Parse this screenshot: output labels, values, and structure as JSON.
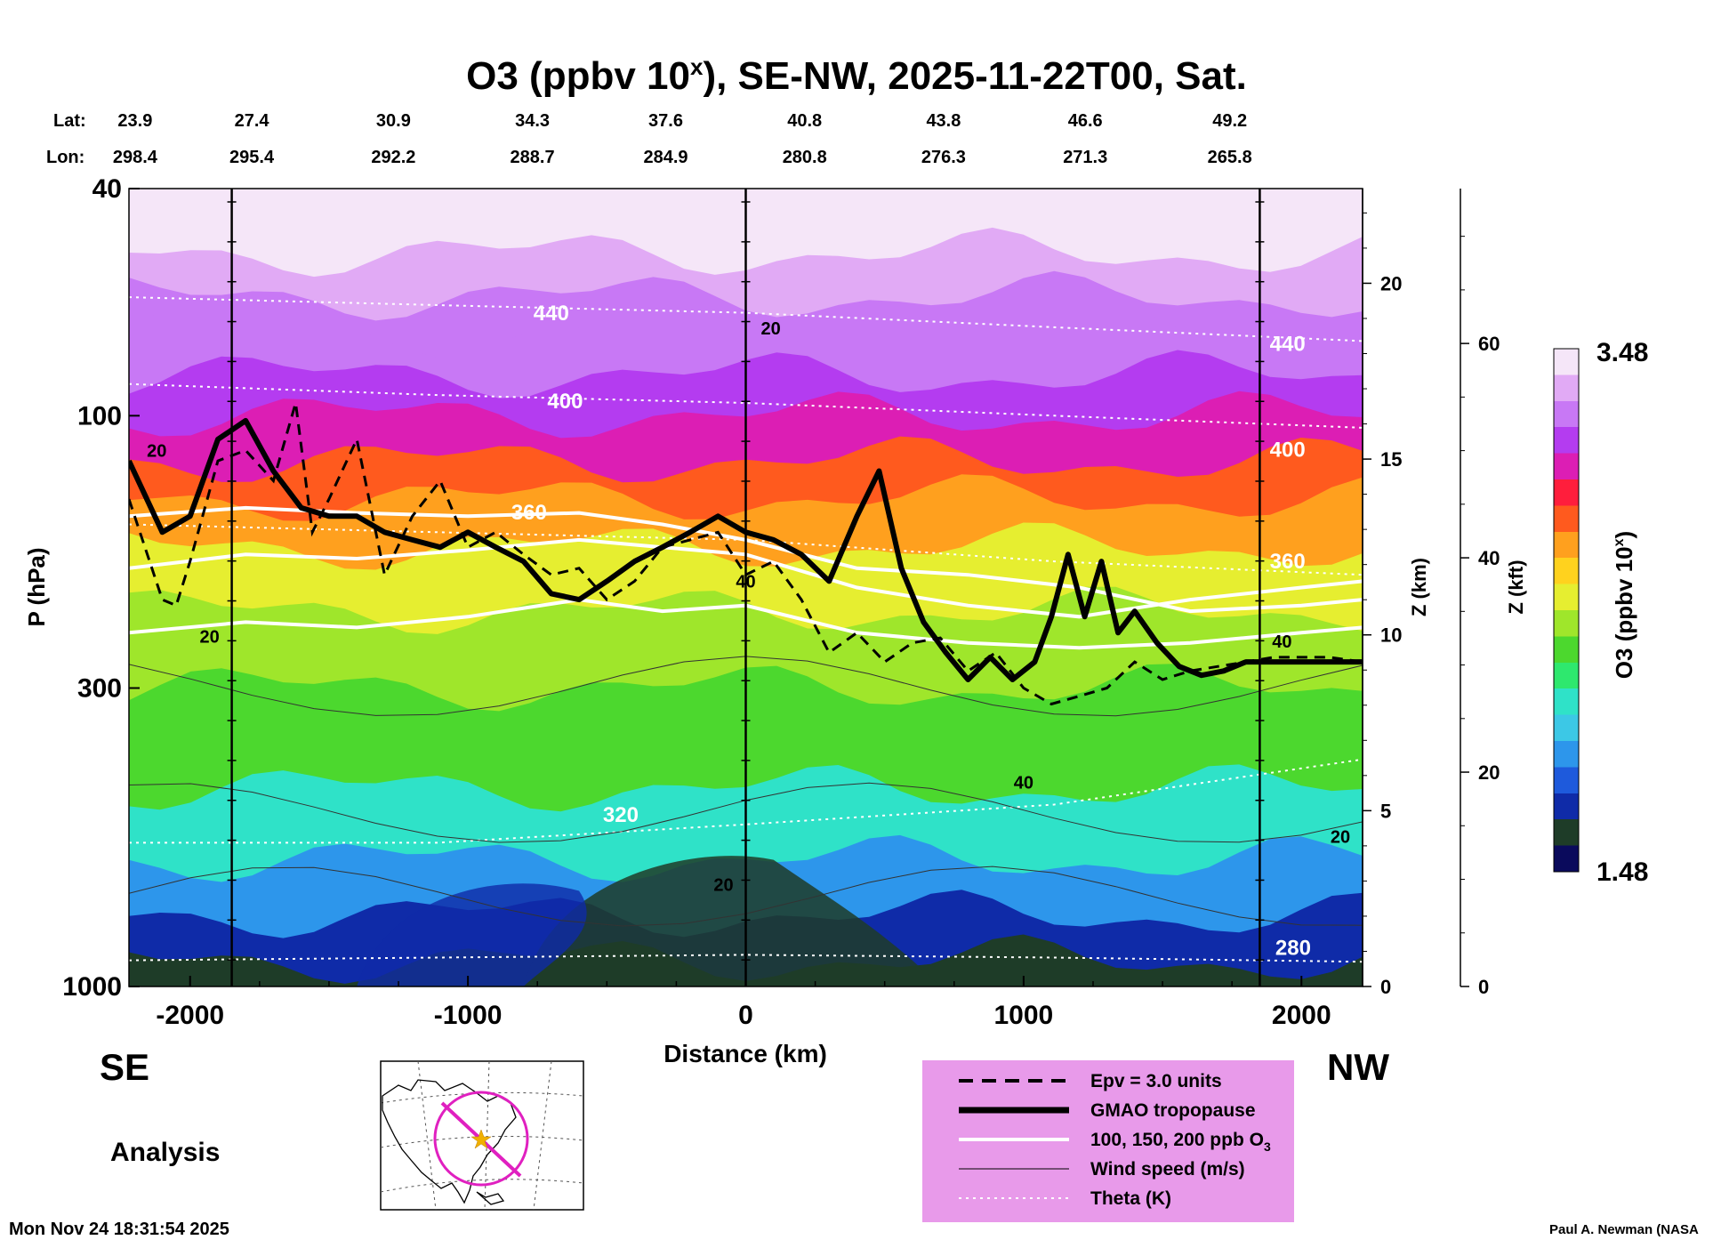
{
  "chart_data": {
    "type": "heatmap",
    "title_main": "O3 (ppbv 10",
    "title_sup": "x",
    "title_rest": "), SE-NW, 2025-11-22T00, Sat.",
    "lat_label": "Lat:",
    "lon_label": "Lon:",
    "lat_values": [
      "23.9",
      "27.4",
      "30.9",
      "34.3",
      "37.6",
      "40.8",
      "43.8",
      "46.6",
      "49.2"
    ],
    "lon_values": [
      "298.4",
      "295.4",
      "292.2",
      "288.7",
      "284.9",
      "280.8",
      "276.3",
      "271.3",
      "265.8"
    ],
    "xlabel": "Distance (km)",
    "xlim": [
      -2220,
      2220
    ],
    "x_ticks": [
      -2000,
      -1000,
      0,
      1000,
      2000
    ],
    "x_tick_labels": [
      "-2000",
      "-1000",
      "0",
      "1000",
      "2000"
    ],
    "ylabel": "P (hPa)",
    "ylim": [
      1000,
      40
    ],
    "y_ticks": [
      40,
      100,
      300,
      1000
    ],
    "y_tick_labels": [
      "40",
      "100",
      "300",
      "1000"
    ],
    "z_km_label": "Z (km)",
    "z_km_ticks": [
      0,
      5,
      10,
      15,
      20
    ],
    "z_km_tick_labels": [
      "0",
      "5",
      "10",
      "15",
      "20"
    ],
    "z_kft_label": "Z (kft)",
    "z_kft_ticks": [
      0,
      20,
      40,
      60
    ],
    "z_kft_tick_labels": [
      "0",
      "20",
      "40",
      "60"
    ],
    "vertical_lines_km": [
      -1850,
      0,
      1850
    ],
    "colorbar": {
      "label": "O3 (ppbv 10",
      "label_sup": "x",
      "label_end": ")",
      "min": 1.48,
      "max": 3.48,
      "min_label": "1.48",
      "max_label": "3.48",
      "colors": [
        "#0a0a5c",
        "#1e3c28",
        "#0f2ba8",
        "#1e5adc",
        "#2d96eb",
        "#3cc8e6",
        "#2fe2c8",
        "#2ee86e",
        "#4cd82e",
        "#9fe62b",
        "#e6ee30",
        "#ffd21e",
        "#ffa01e",
        "#ff5a1e",
        "#ff1e3c",
        "#dc1eb4",
        "#b43cf0",
        "#c878f5",
        "#e1aaf5",
        "#f5e6f8"
      ]
    },
    "ozone_bands": [
      {
        "p": 1000,
        "v": 1.6
      },
      {
        "p": 900,
        "v": 1.75
      },
      {
        "p": 750,
        "v": 1.95
      },
      {
        "p": 600,
        "v": 2.15
      },
      {
        "p": 450,
        "v": 2.3
      },
      {
        "p": 300,
        "v": 2.42
      },
      {
        "p": 220,
        "v": 2.55
      },
      {
        "p": 170,
        "v": 2.7
      },
      {
        "p": 140,
        "v": 2.85
      },
      {
        "p": 120,
        "v": 3.0
      },
      {
        "p": 100,
        "v": 3.1
      },
      {
        "p": 85,
        "v": 3.18
      },
      {
        "p": 72,
        "v": 3.25
      },
      {
        "p": 62,
        "v": 3.33
      },
      {
        "p": 52,
        "v": 3.42
      },
      {
        "p": 40,
        "v": 3.48
      }
    ],
    "tropopause": {
      "name": "GMAO tropopause",
      "x": [
        -2220,
        -2100,
        -2000,
        -1900,
        -1800,
        -1700,
        -1600,
        -1500,
        -1400,
        -1300,
        -1200,
        -1100,
        -1000,
        -900,
        -800,
        -700,
        -600,
        -500,
        -400,
        -300,
        -200,
        -100,
        0,
        100,
        200,
        300,
        400,
        480,
        560,
        640,
        720,
        800,
        880,
        960,
        1040,
        1100,
        1160,
        1220,
        1280,
        1340,
        1400,
        1480,
        1560,
        1640,
        1720,
        1800,
        1900,
        2000,
        2100,
        2220
      ],
      "p": [
        120,
        160,
        150,
        110,
        102,
        125,
        145,
        150,
        150,
        160,
        165,
        170,
        160,
        170,
        180,
        205,
        210,
        195,
        180,
        170,
        160,
        150,
        160,
        165,
        175,
        195,
        150,
        125,
        185,
        230,
        260,
        290,
        265,
        290,
        270,
        225,
        175,
        225,
        180,
        240,
        220,
        250,
        275,
        285,
        280,
        270,
        270,
        270,
        270,
        270
      ]
    },
    "theta_levels": [
      {
        "label": "280",
        "p": [
          900,
          890,
          880,
          890,
          905
        ],
        "label_x": 1970,
        "label_p": 880
      },
      {
        "label": "320",
        "p": [
          560,
          560,
          520,
          480,
          400
        ],
        "label_x": -450,
        "label_p": 515
      },
      {
        "label": "360",
        "p": [
          155,
          160,
          165,
          180,
          190
        ],
        "label_x": 1950,
        "label_p": 185
      },
      {
        "label": "400",
        "p": [
          88,
          92,
          95,
          100,
          105
        ],
        "label_x": 1950,
        "label_p": 118
      },
      {
        "label": "440",
        "p": [
          62,
          64,
          66,
          70,
          74
        ],
        "label_x": 1950,
        "label_p": 77
      }
    ],
    "theta_extra_labels": [
      {
        "label": "440",
        "x": -700,
        "p": 68
      },
      {
        "label": "400",
        "x": -650,
        "p": 97
      },
      {
        "label": "360",
        "x": -780,
        "p": 152
      }
    ],
    "wind_labels": [
      {
        "label": "20",
        "x": -2120,
        "p": 118
      },
      {
        "label": "20",
        "x": 90,
        "p": 72
      },
      {
        "label": "20",
        "x": -1930,
        "p": 250
      },
      {
        "label": "40",
        "x": 0,
        "p": 200
      },
      {
        "label": "40",
        "x": 1000,
        "p": 450
      },
      {
        "label": "40",
        "x": 1930,
        "p": 255
      },
      {
        "label": "20",
        "x": 2140,
        "p": 560
      },
      {
        "label": "20",
        "x": -80,
        "p": 680
      }
    ],
    "o3_contours": [
      {
        "label": "100 ppb",
        "x": [
          -2220,
          -1800,
          -1400,
          -1000,
          -600,
          -300,
          0,
          400,
          800,
          1200,
          1600,
          2000,
          2220
        ],
        "p": [
          240,
          230,
          235,
          225,
          210,
          220,
          215,
          240,
          250,
          255,
          250,
          240,
          235
        ]
      },
      {
        "label": "150 ppb",
        "x": [
          -2220,
          -1800,
          -1400,
          -1000,
          -600,
          -300,
          0,
          400,
          800,
          1200,
          1600,
          2000,
          2220
        ],
        "p": [
          185,
          175,
          178,
          172,
          165,
          170,
          175,
          200,
          215,
          225,
          210,
          200,
          195
        ]
      },
      {
        "label": "200 ppb",
        "x": [
          -2220,
          -1800,
          -1400,
          -1000,
          -600,
          -300,
          0,
          400,
          800,
          1200,
          1600,
          2000,
          2220
        ],
        "p": [
          150,
          145,
          148,
          150,
          148,
          155,
          165,
          185,
          190,
          200,
          220,
          215,
          210
        ]
      }
    ],
    "epv_contour": {
      "name": "Epv = 3.0 units",
      "x": [
        -2220,
        -2100,
        -2050,
        -2000,
        -1900,
        -1800,
        -1700,
        -1620,
        -1560,
        -1500,
        -1400,
        -1300,
        -1200,
        -1100,
        -1000,
        -900,
        -800,
        -700,
        -600,
        -500,
        -400,
        -300,
        -200,
        -100,
        0,
        100,
        200,
        300,
        400,
        500,
        600,
        700,
        800,
        900,
        1000,
        1100,
        1200,
        1300,
        1400,
        1500,
        1600,
        1700,
        1800,
        1900,
        2000,
        2100,
        2220
      ],
      "p": [
        140,
        210,
        215,
        180,
        120,
        115,
        130,
        95,
        160,
        140,
        110,
        190,
        150,
        130,
        170,
        160,
        175,
        190,
        185,
        210,
        195,
        170,
        165,
        160,
        190,
        180,
        210,
        260,
        240,
        270,
        250,
        245,
        280,
        260,
        300,
        320,
        310,
        300,
        270,
        290,
        280,
        275,
        270,
        265,
        265,
        265,
        270
      ]
    },
    "legend": {
      "items": [
        {
          "label": "Epv = 3.0 units",
          "style": "dashed"
        },
        {
          "label": "GMAO tropopause",
          "style": "thick"
        },
        {
          "label": "100, 150, 200 ppb O",
          "sub": "3",
          "style": "white"
        },
        {
          "label": "Wind speed (m/s)",
          "style": "thin"
        },
        {
          "label": "Theta (K)",
          "style": "dotted"
        }
      ],
      "placement": "bottom-right"
    },
    "se_label": "SE",
    "nw_label": "NW",
    "analysis_label": "Analysis"
  },
  "footer": {
    "timestamp": "Mon Nov 24 18:31:54 2025",
    "credit": "Paul A. Newman (NASA"
  },
  "colors": {
    "background": "#ffffff",
    "legend_bg": "#e89aea",
    "map_circle": "#e020c0",
    "map_star": "#f0b000"
  }
}
